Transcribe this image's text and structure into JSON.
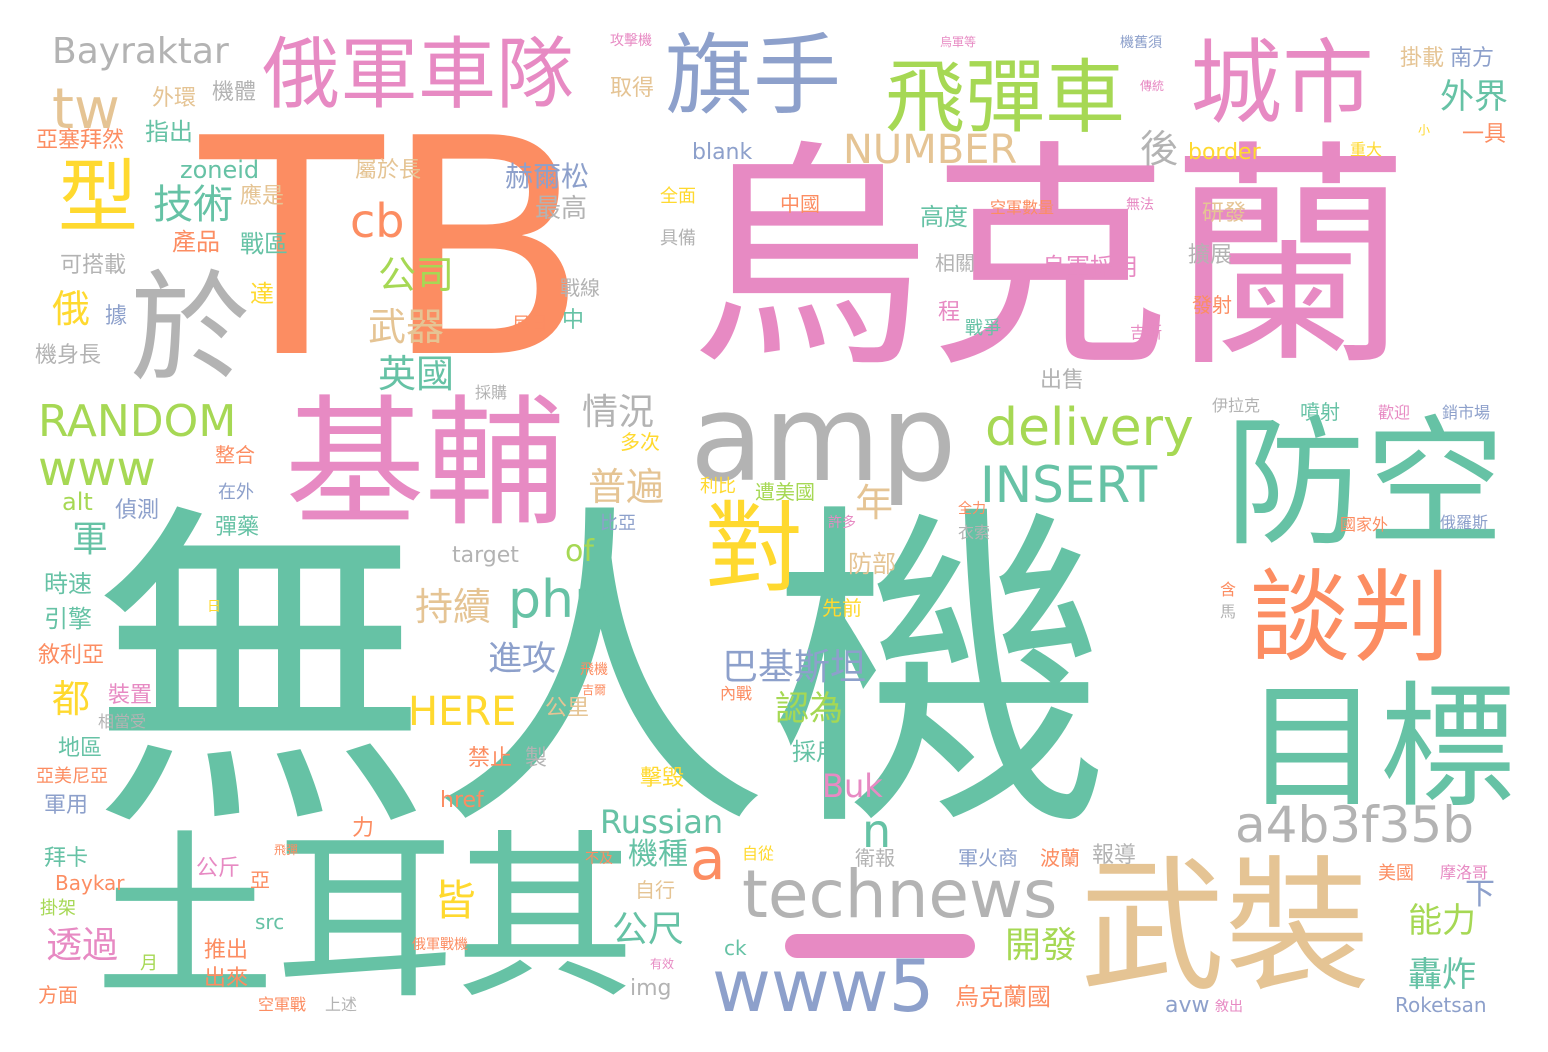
{
  "palette": {
    "green": "#66c2a5",
    "orange": "#fc8d62",
    "blue": "#8da0cb",
    "pink": "#e78ac3",
    "lime": "#a6d854",
    "yellow": "#ffd92f",
    "tan": "#e5c494",
    "gray": "#b3b3b3"
  },
  "words": [
    "無人機",
    "TB",
    "烏克蘭",
    "土耳其",
    "基輔",
    "武裝",
    "防空",
    "目標",
    "amp",
    "於",
    "俄軍車隊",
    "旗手",
    "飛彈車",
    "城市",
    "對",
    "談判",
    "technews",
    "www5",
    "a4b3f35b",
    "php",
    "delivery",
    "INSERT",
    "RANDOM",
    "www",
    "型",
    "tw",
    "cb",
    "a",
    "n",
    "Bayraktar",
    "NUMBER",
    "技術",
    "後",
    "外界",
    "掛載",
    "南方",
    "一具",
    "HERE",
    "巴基斯坦",
    "Russian",
    "Buk",
    "公司",
    "武器",
    "英國",
    "情況",
    "普遍",
    "持續",
    "進攻",
    "皆",
    "透過",
    "公尺",
    "能力",
    "開發",
    "轟炸",
    "機種",
    "認為",
    "of",
    "年",
    "下",
    "都",
    "俄",
    "軍",
    "赫爾松",
    "最高",
    "產品",
    "戰區",
    "應是",
    "可搭載",
    "zoneid",
    "屬於長",
    "指出",
    "外環",
    "機體",
    "取得",
    "亞塞拜然",
    "blank",
    "border",
    "高度",
    "研發",
    "烏軍採用",
    "相關",
    "擴展",
    "中國",
    "空軍數量",
    "無法",
    "重大",
    "機身長",
    "達",
    "據",
    "尼日",
    "中",
    "戰線",
    "程",
    "戰爭",
    "吉斯",
    "發射",
    "出售",
    "伊拉克",
    "噴射",
    "歡迎",
    "銷市場",
    "採購",
    "多次",
    "整合",
    "在外",
    "利比",
    "遭美國",
    "全力",
    "國家外",
    "俄羅斯",
    "衣索",
    "alt",
    "偵測",
    "彈藥",
    "target",
    "比亞",
    "許多",
    "時速",
    "引擎",
    "防部",
    "先前",
    "敘利亞",
    "裝置",
    "相當受",
    "內戰",
    "公里",
    "禁止",
    "製",
    "採用",
    "地區",
    "亞美尼亞",
    "擊毀",
    "軍用",
    "href",
    "力",
    "報導",
    "衛報",
    "軍火商",
    "波蘭",
    "拜卡",
    "公斤",
    "亞",
    "自從",
    "不及",
    "自行",
    "美國",
    "摩洛哥",
    "Baykar",
    "src",
    "推出",
    "出來",
    "掛架",
    "月",
    "ck",
    "img",
    "烏克蘭國",
    "avw",
    "Roketsan",
    "方面",
    "空軍戰",
    "上述",
    "俄軍戰機",
    "有效",
    "敘出",
    "飛彈",
    "飛機",
    "吉爾",
    "含",
    "馬",
    "日",
    "攻擊機",
    "機舊須",
    "烏軍等",
    "傳統",
    "全面",
    "具備",
    "小"
  ]
}
